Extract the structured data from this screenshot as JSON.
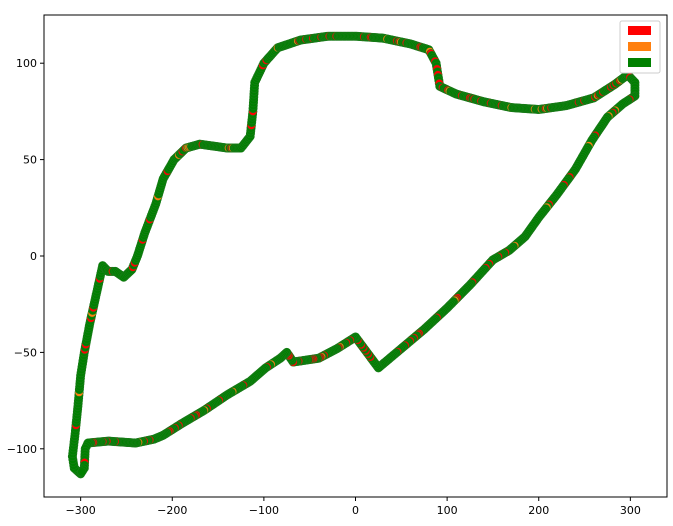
{
  "chart_data": {
    "type": "scatter",
    "title": "",
    "xlabel": "",
    "ylabel": "",
    "xlim": [
      -340,
      340
    ],
    "ylim": [
      -125,
      125
    ],
    "xticks": [
      -300,
      -200,
      -100,
      0,
      100,
      200,
      300
    ],
    "yticks": [
      -100,
      -50,
      0,
      50,
      100
    ],
    "xtick_labels": [
      "−300",
      "−200",
      "−100",
      "0",
      "100",
      "200",
      "300"
    ],
    "ytick_labels": [
      "−100",
      "−50",
      "0",
      "50",
      "100"
    ],
    "grid": false,
    "legend_position": "top-right",
    "series": [
      {
        "color": "#ff0000",
        "points_label": ""
      },
      {
        "color": "#ff7f0e",
        "points_label": ""
      },
      {
        "color": "#008000",
        "points_label": ""
      }
    ],
    "track": [
      [
        -300,
        -113
      ],
      [
        -307,
        -110
      ],
      [
        -309,
        -104
      ],
      [
        -306,
        -92
      ],
      [
        -303,
        -78
      ],
      [
        -300,
        -62
      ],
      [
        -296,
        -50
      ],
      [
        -290,
        -35
      ],
      [
        -283,
        -20
      ],
      [
        -276,
        -5
      ],
      [
        -270,
        -8
      ],
      [
        -262,
        -8
      ],
      [
        -253,
        -11
      ],
      [
        -244,
        -7
      ],
      [
        -238,
        0
      ],
      [
        -230,
        12
      ],
      [
        -218,
        27
      ],
      [
        -210,
        40
      ],
      [
        -198,
        50
      ],
      [
        -185,
        56
      ],
      [
        -170,
        58
      ],
      [
        -155,
        57
      ],
      [
        -140,
        56
      ],
      [
        -125,
        56
      ],
      [
        -115,
        62
      ],
      [
        -112,
        75
      ],
      [
        -110,
        90
      ],
      [
        -100,
        100
      ],
      [
        -85,
        108
      ],
      [
        -60,
        112
      ],
      [
        -30,
        114
      ],
      [
        0,
        114
      ],
      [
        30,
        113
      ],
      [
        60,
        110
      ],
      [
        80,
        107
      ],
      [
        88,
        100
      ],
      [
        92,
        88
      ],
      [
        110,
        84
      ],
      [
        140,
        80
      ],
      [
        170,
        77
      ],
      [
        200,
        76
      ],
      [
        230,
        78
      ],
      [
        260,
        82
      ],
      [
        283,
        89
      ],
      [
        297,
        94
      ],
      [
        305,
        90
      ],
      [
        305,
        83
      ],
      [
        292,
        79
      ],
      [
        275,
        72
      ],
      [
        258,
        60
      ],
      [
        240,
        45
      ],
      [
        220,
        32
      ],
      [
        200,
        20
      ],
      [
        185,
        10
      ],
      [
        168,
        3
      ],
      [
        150,
        -2
      ],
      [
        125,
        -15
      ],
      [
        100,
        -27
      ],
      [
        75,
        -38
      ],
      [
        50,
        -48
      ],
      [
        25,
        -58
      ],
      [
        0,
        -42
      ],
      [
        -20,
        -48
      ],
      [
        -40,
        -53
      ],
      [
        -68,
        -55
      ],
      [
        -75,
        -50
      ],
      [
        -82,
        -53
      ],
      [
        -98,
        -58
      ],
      [
        -115,
        -65
      ],
      [
        -140,
        -72
      ],
      [
        -165,
        -80
      ],
      [
        -190,
        -87
      ],
      [
        -210,
        -93
      ],
      [
        -220,
        -95
      ],
      [
        -240,
        -97
      ],
      [
        -270,
        -96
      ],
      [
        -292,
        -97
      ],
      [
        -295,
        -100
      ],
      [
        -296,
        -110
      ],
      [
        -300,
        -113
      ]
    ],
    "red_fraction": 0.12,
    "orange_fraction": 0.04
  }
}
